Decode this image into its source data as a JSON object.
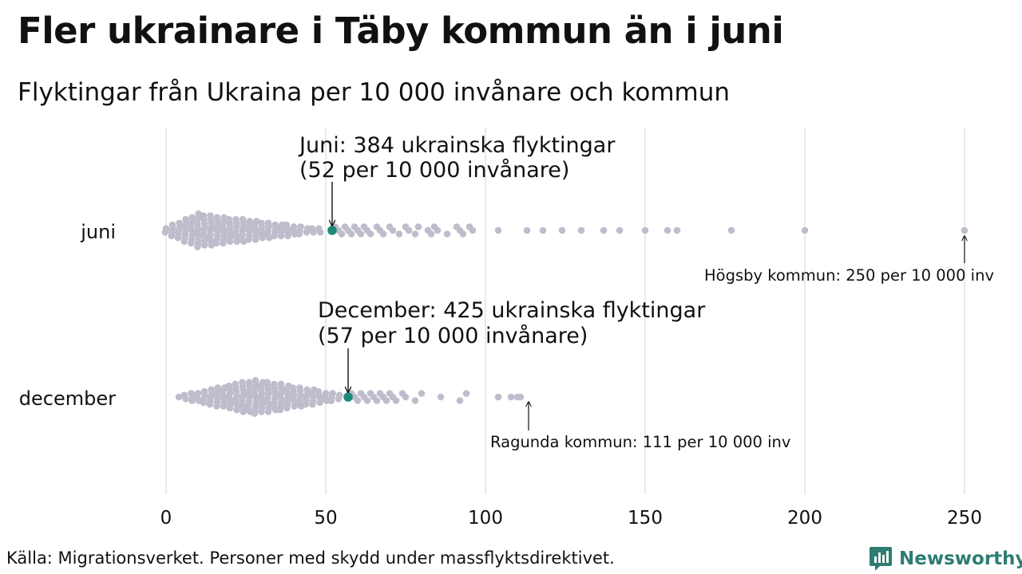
{
  "title": "Fler ukrainare i Täby kommun än i juni",
  "subtitle": "Flyktingar från Ukraina per 10 000 invånare och kommun",
  "source": "Källa: Migrationsverket. Personer med skydd under massflyktsdirektivet.",
  "brand": "Newsworthy",
  "colors": {
    "dot": "#bfbdcc",
    "highlight": "#1a8a7a",
    "grid": "#d6d6d6",
    "text": "#111111"
  },
  "chart_data": {
    "type": "scatter",
    "style": "beeswarm",
    "xlim": [
      0,
      260
    ],
    "x_ticks": [
      0,
      50,
      100,
      150,
      200,
      250
    ],
    "categories": [
      "juni",
      "december"
    ],
    "series": [
      {
        "name": "juni",
        "highlight": {
          "value": 52,
          "label_line1": "Juni: 384 ukrainska flyktingar",
          "label_line2": "(52 per 10 000 invånare)"
        },
        "max_annotation": {
          "value": 250,
          "label": "Högsby kommun: 250 per 10 000 inv"
        },
        "tail_values": [
          53,
          54,
          55,
          56,
          57,
          58,
          59,
          60,
          61,
          62,
          63,
          64,
          66,
          67,
          68,
          70,
          71,
          73,
          75,
          76,
          78,
          79,
          82,
          83,
          84,
          85,
          88,
          91,
          92,
          93,
          95,
          96,
          104,
          113,
          118,
          124,
          130,
          137,
          142,
          150,
          157,
          160,
          177,
          200,
          250
        ]
      },
      {
        "name": "december",
        "highlight": {
          "value": 57,
          "label_line1": "December: 425 ukrainska flyktingar",
          "label_line2": "(57 per 10 000 invånare)"
        },
        "max_annotation": {
          "value": 111,
          "label": "Ragunda kommun: 111 per 10 000 inv"
        },
        "tail_values": [
          58,
          59,
          60,
          61,
          62,
          63,
          64,
          65,
          66,
          67,
          68,
          69,
          70,
          71,
          72,
          74,
          75,
          78,
          80,
          86,
          92,
          94,
          104,
          108,
          110,
          111
        ]
      }
    ]
  }
}
